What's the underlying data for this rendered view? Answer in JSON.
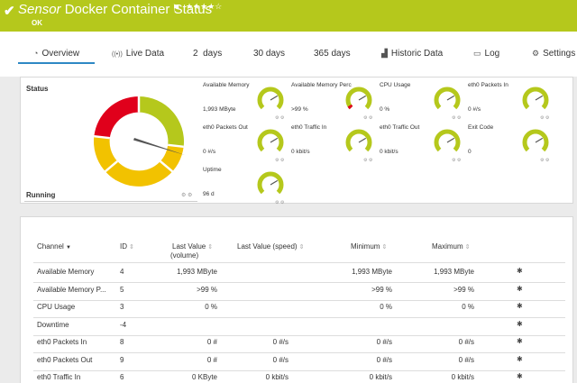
{
  "header": {
    "check_icon": "✔",
    "title_kind": "Sensor",
    "title_name": "Docker Container Status",
    "flag_icon": "flag-icon",
    "stars": "★★★★☆",
    "state": "OK",
    "color": "#b5c81c"
  },
  "tabs": [
    {
      "label": "Overview",
      "icon": "gauge-icon",
      "glyph": "◔"
    },
    {
      "label": "Live Data",
      "icon": "live-signal-icon",
      "glyph": "((•))"
    },
    {
      "label": "2  days",
      "icon": "",
      "glyph": ""
    },
    {
      "label": "30 days",
      "icon": "",
      "glyph": ""
    },
    {
      "label": "365 days",
      "icon": "",
      "glyph": ""
    },
    {
      "label": "Historic Data",
      "icon": "area-chart-icon",
      "glyph": "▟"
    },
    {
      "label": "Log",
      "icon": "log-icon",
      "glyph": "▭"
    },
    {
      "label": "Settings",
      "icon": "gear-icon",
      "glyph": "⚙"
    }
  ],
  "status": {
    "label": "Status",
    "state": "Running"
  },
  "gauges": [
    {
      "name": "Available Memory",
      "value": "1,993 MByte",
      "level": 0.1
    },
    {
      "name": "Available Memory Perc",
      "value": ">99 %",
      "level": 0.0
    },
    {
      "name": "CPU Usage",
      "value": "0 %",
      "level": 0.05
    },
    {
      "name": "eth0 Packets In",
      "value": "0 #/s",
      "level": 0.05
    },
    {
      "name": "eth0 Packets Out",
      "value": "0 #/s",
      "level": 0.05
    },
    {
      "name": "eth0 Traffic In",
      "value": "0 kbit/s",
      "level": 0.05
    },
    {
      "name": "eth0 Traffic Out",
      "value": "0 kbit/s",
      "level": 0.05
    },
    {
      "name": "Exit Code",
      "value": "0",
      "level": 0.05
    },
    {
      "name": "Uptime",
      "value": "96 d",
      "level": 0.05
    }
  ],
  "table": {
    "headers": {
      "channel": "Channel",
      "id": "ID",
      "last_value_volume_1": "Last Value",
      "last_value_volume_2": "(volume)",
      "last_value_speed": "Last Value (speed)",
      "minimum": "Minimum",
      "maximum": "Maximum"
    },
    "rows": [
      {
        "channel": "Available Memory",
        "id": "4",
        "vol": "1,993 MByte",
        "speed": "",
        "min": "1,993 MByte",
        "max": "1,993 MByte"
      },
      {
        "channel": "Available Memory P...",
        "id": "5",
        "vol": ">99 %",
        "speed": "",
        "min": ">99 %",
        "max": ">99 %"
      },
      {
        "channel": "CPU Usage",
        "id": "3",
        "vol": "0 %",
        "speed": "",
        "min": "0 %",
        "max": "0 %"
      },
      {
        "channel": "Downtime",
        "id": "-4",
        "vol": "",
        "speed": "",
        "min": "",
        "max": ""
      },
      {
        "channel": "eth0 Packets In",
        "id": "8",
        "vol": "0 #",
        "speed": "0 #/s",
        "min": "0 #/s",
        "max": "0 #/s"
      },
      {
        "channel": "eth0 Packets Out",
        "id": "9",
        "vol": "0 #",
        "speed": "0 #/s",
        "min": "0 #/s",
        "max": "0 #/s"
      },
      {
        "channel": "eth0 Traffic In",
        "id": "6",
        "vol": "0 KByte",
        "speed": "0 kbit/s",
        "min": "0 kbit/s",
        "max": "0 kbit/s"
      }
    ]
  },
  "colors": {
    "accent": "#2e88c4",
    "gauge_green": "#b5c81c",
    "gauge_yellow": "#f2c200",
    "gauge_red": "#e0001b"
  }
}
